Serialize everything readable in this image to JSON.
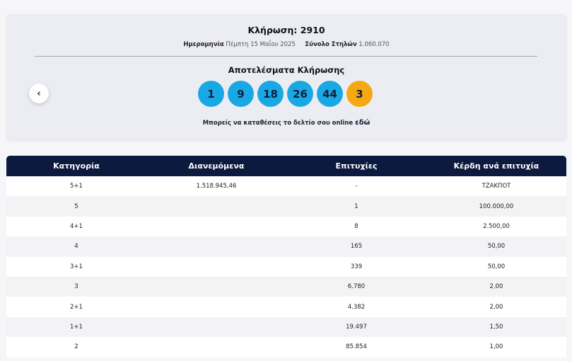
{
  "draw": {
    "title": "Κλήρωση: 2910",
    "date_label": "Ημερομηνία",
    "date_value": "Πέμπτη 15 Μαΐου 2025",
    "columns_label": "Σύνολο Στηλών",
    "columns_value": "1.060.070",
    "results_title": "Αποτελέσματα Κλήρωσης",
    "numbers": [
      "1",
      "9",
      "18",
      "26",
      "44"
    ],
    "joker": "3",
    "online_text": "Μπορείς να καταθέσεις το δελτίο σου online",
    "online_link": "εδώ",
    "prev_icon": "‹"
  },
  "colors": {
    "ball": "#1aa8e5",
    "joker": "#f4a913",
    "header": "#0b1a3e"
  },
  "table": {
    "headers": [
      "Κατηγορία",
      "Διανεμόμενα",
      "Επιτυχίες",
      "Κέρδη ανά επιτυχία"
    ],
    "rows": [
      [
        "5+1",
        "1.518.945,46",
        "-",
        "ΤΖΑΚΠΟΤ"
      ],
      [
        "5",
        "",
        "1",
        "100.000,00"
      ],
      [
        "4+1",
        "",
        "8",
        "2.500,00"
      ],
      [
        "4",
        "",
        "165",
        "50,00"
      ],
      [
        "3+1",
        "",
        "339",
        "50,00"
      ],
      [
        "3",
        "",
        "6.780",
        "2,00"
      ],
      [
        "2+1",
        "",
        "4.382",
        "2,00"
      ],
      [
        "1+1",
        "",
        "19.497",
        "1,50"
      ],
      [
        "2",
        "",
        "85.854",
        "1,00"
      ]
    ]
  }
}
